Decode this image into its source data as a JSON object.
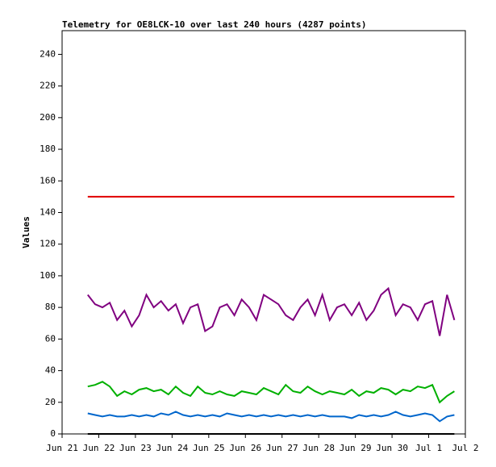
{
  "chart_data": {
    "type": "line",
    "title": "Telemetry for OE8LCK-10 over last 240 hours (4287 points)",
    "y_label": "Values",
    "xlim": [
      0,
      11
    ],
    "xticks": [
      {
        "value": 0,
        "label": "Jun 21"
      },
      {
        "value": 1,
        "label": "Jun 22"
      },
      {
        "value": 2,
        "label": "Jun 23"
      },
      {
        "value": 3,
        "label": "Jun 24"
      },
      {
        "value": 4,
        "label": "Jun 25"
      },
      {
        "value": 5,
        "label": "Jun 26"
      },
      {
        "value": 6,
        "label": "Jun 27"
      },
      {
        "value": 7,
        "label": "Jun 28"
      },
      {
        "value": 8,
        "label": "Jun 29"
      },
      {
        "value": 9,
        "label": "Jun 30"
      },
      {
        "value": 10,
        "label": "Jul 1"
      },
      {
        "value": 11,
        "label": "Jul 2"
      }
    ],
    "ylim": [
      0,
      255
    ],
    "yticks": [
      0,
      20,
      40,
      60,
      80,
      100,
      120,
      140,
      160,
      180,
      200,
      220,
      240
    ],
    "x": [
      0.7,
      0.9,
      1.1,
      1.3,
      1.5,
      1.7,
      1.9,
      2.1,
      2.3,
      2.5,
      2.7,
      2.9,
      3.1,
      3.3,
      3.5,
      3.7,
      3.9,
      4.1,
      4.3,
      4.5,
      4.7,
      4.9,
      5.1,
      5.3,
      5.5,
      5.7,
      5.9,
      6.1,
      6.3,
      6.5,
      6.7,
      6.9,
      7.1,
      7.3,
      7.5,
      7.7,
      7.9,
      8.1,
      8.3,
      8.5,
      8.7,
      8.9,
      9.1,
      9.3,
      9.5,
      9.7,
      9.9,
      10.1,
      10.3,
      10.5,
      10.7
    ],
    "series": [
      {
        "color": "#e00000",
        "values": [
          150,
          150,
          150,
          150,
          150,
          150,
          150,
          150,
          150,
          150,
          150,
          150,
          150,
          150,
          150,
          150,
          150,
          150,
          150,
          150,
          150,
          150,
          150,
          150,
          150,
          150,
          150,
          150,
          150,
          150,
          150,
          150,
          150,
          150,
          150,
          150,
          150,
          150,
          150,
          150,
          150,
          150,
          150,
          150,
          150,
          150,
          150,
          150,
          150,
          150,
          150
        ]
      },
      {
        "color": "#800080",
        "values": [
          88,
          82,
          80,
          83,
          72,
          78,
          68,
          75,
          88,
          80,
          84,
          78,
          82,
          70,
          80,
          82,
          65,
          68,
          80,
          82,
          75,
          85,
          80,
          72,
          88,
          85,
          82,
          75,
          72,
          80,
          85,
          75,
          88,
          72,
          80,
          82,
          75,
          83,
          72,
          78,
          88,
          92,
          75,
          82,
          80,
          72,
          82,
          84,
          62,
          88,
          72
        ]
      },
      {
        "color": "#00b000",
        "values": [
          30,
          31,
          33,
          30,
          24,
          27,
          25,
          28,
          29,
          27,
          28,
          25,
          30,
          26,
          24,
          30,
          26,
          25,
          27,
          25,
          24,
          27,
          26,
          25,
          29,
          27,
          25,
          31,
          27,
          26,
          30,
          27,
          25,
          27,
          26,
          25,
          28,
          24,
          27,
          26,
          29,
          28,
          25,
          28,
          27,
          30,
          29,
          31,
          20,
          24,
          27
        ]
      },
      {
        "color": "#0066cc",
        "values": [
          13,
          12,
          11,
          12,
          11,
          11,
          12,
          11,
          12,
          11,
          13,
          12,
          14,
          12,
          11,
          12,
          11,
          12,
          11,
          13,
          12,
          11,
          12,
          11,
          12,
          11,
          12,
          11,
          12,
          11,
          12,
          11,
          12,
          11,
          11,
          11,
          10,
          12,
          11,
          12,
          11,
          12,
          14,
          12,
          11,
          12,
          13,
          12,
          8,
          11,
          12
        ]
      },
      {
        "color": "#000000",
        "values": [
          0,
          0,
          0,
          0,
          0,
          0,
          0,
          0,
          0,
          0,
          0,
          0,
          0,
          0,
          0,
          0,
          0,
          0,
          0,
          0,
          0,
          0,
          0,
          0,
          0,
          0,
          0,
          0,
          0,
          0,
          0,
          0,
          0,
          0,
          0,
          0,
          0,
          0,
          0,
          0,
          0,
          0,
          0,
          0,
          0,
          0,
          0,
          0,
          0,
          0,
          0
        ]
      }
    ]
  }
}
